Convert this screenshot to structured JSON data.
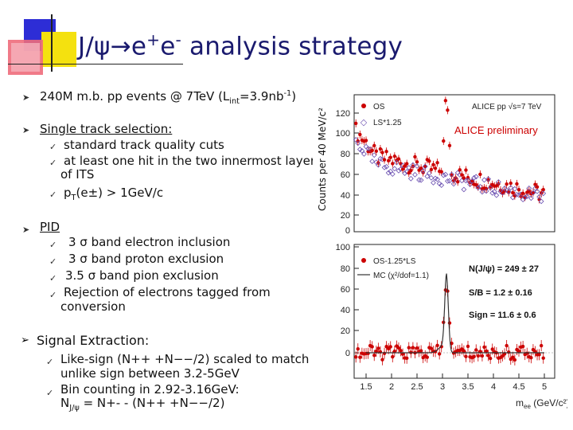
{
  "title": {
    "main": "J/ψ",
    "arrow": "→",
    "e1": "e",
    "sup1": "+",
    "e2": "e",
    "sup2": "-",
    "rest": " analysis strategy"
  },
  "bullets": {
    "b1": {
      "pre": "240M m.b. pp events @ 7TeV (L",
      "sub": "int",
      "mid": "=3.9nb",
      "sup": "-1",
      "post": ")"
    },
    "b2": {
      "label": "Single track selection:",
      "c1": "standard track quality cuts",
      "c2a": "at least one hit in the two innermost layers",
      "c2b": "of ITS",
      "c3pre": "p",
      "c3sub": "T",
      "c3post": "(e±) > 1GeV/c"
    },
    "b3": {
      "label": "PID",
      "c1": "3 σ band electron inclusion",
      "c2": "3 σ band proton exclusion",
      "c3": "3.5 σ band pion exclusion",
      "c4a": "Rejection of electrons tagged from",
      "c4b": "conversion"
    },
    "b4": {
      "label": "Signal Extraction:",
      "c1a": "Like-sign (N++ +N−−/2) scaled to match with",
      "c1b": "unlike sign between 3.2-5GeV",
      "c2a": "Bin counting in 2.92-3.16GeV:",
      "c2pre": "N",
      "c2sub": "J/ψ",
      "c2post": " = N+- - (N++ +N−−/2)"
    }
  },
  "plot": {
    "ylabel": "Counts per 40 MeV/c²",
    "xlabel": "m",
    "xlabel_sub": "ee",
    "xlabel_unit": " (GeV/c²)",
    "top_legend": [
      "OS",
      "LS*1.25"
    ],
    "top_header": "ALICE pp √s=7 TeV",
    "preliminary": "ALICE preliminary",
    "top_yticks": [
      "120",
      "100",
      "80",
      "60",
      "40",
      "20",
      "0"
    ],
    "bottom_legend": [
      "OS-1.25*LS",
      "MC (χ²/dof=1.1)"
    ],
    "bottom_yticks": [
      "100",
      "80",
      "60",
      "40",
      "20",
      "0"
    ],
    "xticks": [
      "1.5",
      "2",
      "2.5",
      "3",
      "3.5",
      "4",
      "4.5",
      "5"
    ],
    "ann1": "N(J/ψ) = 249 ± 27",
    "ann2": "S/B = 1.2 ± 0.16",
    "ann3": "Sign = 11.6 ± 0.6",
    "colors": {
      "os": "#cc0000",
      "ls": "#6a4fb0",
      "mc": "#333333",
      "title": "#1a1a6e"
    }
  }
}
